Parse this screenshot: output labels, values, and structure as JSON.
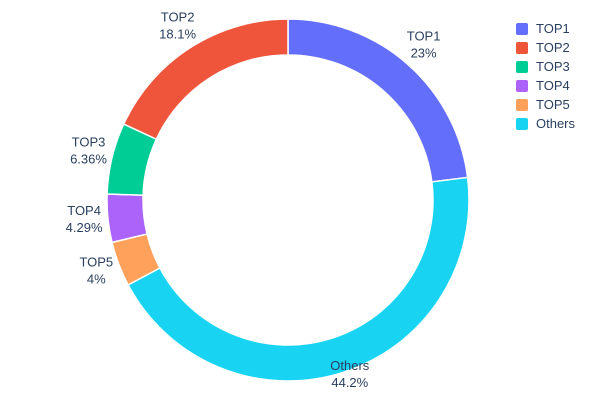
{
  "chart_data": {
    "type": "pie",
    "subtype": "donut",
    "hole_ratio": 0.8,
    "labels": [
      "TOP1",
      "TOP2",
      "TOP3",
      "TOP4",
      "TOP5",
      "Others"
    ],
    "values": [
      23,
      18.1,
      6.36,
      4.29,
      4,
      44.2
    ],
    "percent_labels": [
      "23%",
      "18.1%",
      "6.36%",
      "4.29%",
      "4%",
      "44.2%"
    ],
    "slice_colors": [
      "#636EFA",
      "#EF553B",
      "#00CC96",
      "#AB63FA",
      "#FFA15A",
      "#19D3F3"
    ],
    "clockwise_order_from_top": [
      "TOP1",
      "Others",
      "TOP5",
      "TOP4",
      "TOP3",
      "TOP2"
    ],
    "legend": {
      "position": "top-right",
      "entries": [
        "TOP1",
        "TOP2",
        "TOP3",
        "TOP4",
        "TOP5",
        "Others"
      ]
    },
    "title": "",
    "text_color": "#2a3f5f",
    "background": "#ffffff",
    "slice_border_color": "#ffffff"
  }
}
